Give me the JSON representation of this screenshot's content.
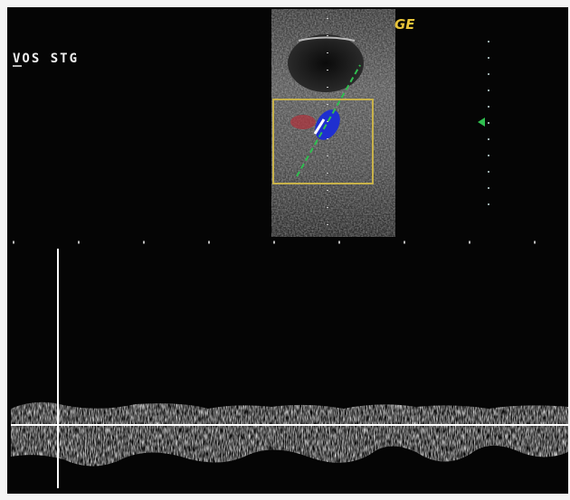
{
  "labels": {
    "mode": "VOS STG",
    "brand": "GE"
  }
}
